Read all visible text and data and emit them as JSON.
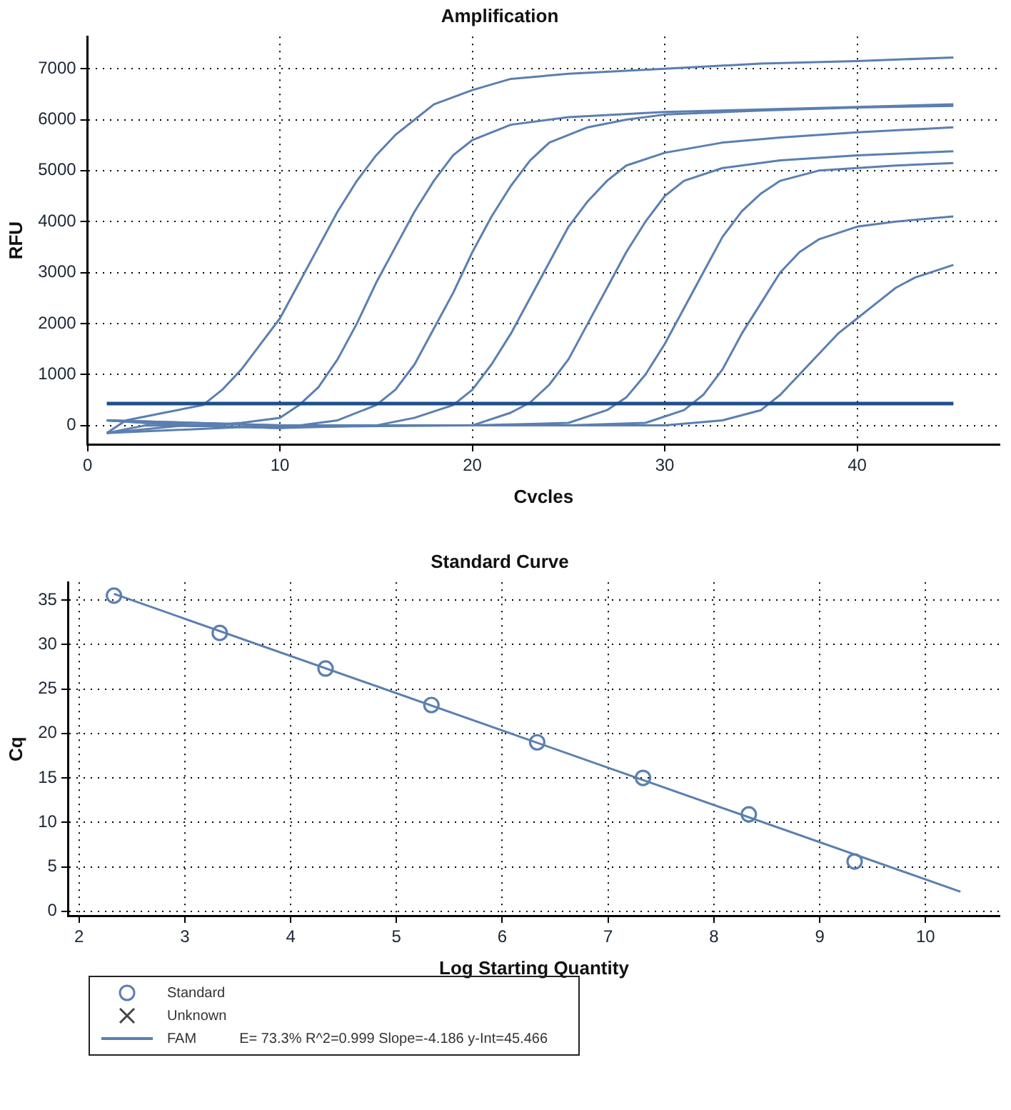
{
  "chart_data": [
    {
      "type": "line",
      "title": "Amplification",
      "xlabel": "Cvcles",
      "ylabel": "RFU",
      "xlim": [
        0,
        47.4
      ],
      "ylim": [
        -370,
        7630
      ],
      "xticks": [
        0,
        10,
        20,
        30,
        40
      ],
      "yticks": [
        0,
        1000,
        2000,
        3000,
        4000,
        5000,
        6000,
        7000
      ],
      "grid": true,
      "legend": false,
      "marker": "none",
      "ref_lines": [
        {
          "axis": "y",
          "value": 430,
          "color": "#1f4e8c"
        }
      ],
      "series": [
        {
          "color": "#5b7fb0",
          "x": [
            1,
            2,
            4,
            6,
            7,
            8,
            9,
            10,
            11,
            12,
            13,
            14,
            15,
            16,
            17,
            18,
            20,
            22,
            25,
            30,
            35,
            40,
            45
          ],
          "values": [
            -150,
            100,
            250,
            400,
            700,
            1100,
            1600,
            2100,
            2800,
            3500,
            4200,
            4800,
            5300,
            5700,
            6000,
            6300,
            6580,
            6800,
            6900,
            7000,
            7100,
            7150,
            7220
          ]
        },
        {
          "color": "#5b7fb0",
          "x": [
            1,
            3,
            6,
            8,
            10,
            11,
            12,
            13,
            14,
            15,
            16,
            17,
            18,
            19,
            20,
            22,
            25,
            30,
            35,
            40,
            45
          ],
          "values": [
            100,
            50,
            0,
            50,
            150,
            400,
            750,
            1300,
            2000,
            2800,
            3500,
            4200,
            4800,
            5300,
            5600,
            5900,
            6050,
            6150,
            6200,
            6250,
            6300
          ]
        },
        {
          "color": "#5b7fb0",
          "x": [
            1,
            5,
            10,
            13,
            15,
            16,
            17,
            18,
            19,
            20,
            21,
            22,
            23,
            24,
            26,
            28,
            30,
            35,
            40,
            45
          ],
          "values": [
            -150,
            0,
            -50,
            100,
            400,
            700,
            1200,
            1900,
            2600,
            3400,
            4100,
            4700,
            5200,
            5550,
            5850,
            6000,
            6100,
            6180,
            6240,
            6270
          ]
        },
        {
          "color": "#5b7fb0",
          "x": [
            1,
            5,
            10,
            15,
            17,
            19,
            20,
            21,
            22,
            23,
            24,
            25,
            26,
            27,
            28,
            30,
            33,
            36,
            40,
            45
          ],
          "values": [
            100,
            0,
            -50,
            0,
            150,
            400,
            700,
            1200,
            1800,
            2500,
            3200,
            3900,
            4400,
            4800,
            5100,
            5350,
            5550,
            5650,
            5750,
            5850
          ]
        },
        {
          "color": "#5b7fb0",
          "x": [
            1,
            3,
            10,
            20,
            22,
            23,
            24,
            25,
            26,
            27,
            28,
            29,
            30,
            31,
            33,
            36,
            40,
            45
          ],
          "values": [
            -150,
            0,
            -30,
            0,
            250,
            450,
            800,
            1300,
            2000,
            2700,
            3400,
            4000,
            4500,
            4800,
            5050,
            5200,
            5300,
            5380
          ]
        },
        {
          "color": "#5b7fb0",
          "x": [
            1,
            10,
            20,
            25,
            27,
            28,
            29,
            30,
            31,
            32,
            33,
            34,
            35,
            36,
            38,
            40,
            42,
            45
          ],
          "values": [
            100,
            0,
            0,
            50,
            300,
            550,
            1000,
            1600,
            2300,
            3000,
            3700,
            4200,
            4550,
            4800,
            5000,
            5050,
            5100,
            5150
          ]
        },
        {
          "color": "#5b7fb0",
          "x": [
            1,
            10,
            25,
            29,
            31,
            32,
            33,
            34,
            35,
            36,
            37,
            38,
            40,
            42,
            45
          ],
          "values": [
            100,
            0,
            0,
            50,
            300,
            600,
            1100,
            1800,
            2400,
            3000,
            3400,
            3650,
            3900,
            4000,
            4100
          ]
        },
        {
          "color": "#5b7fb0",
          "x": [
            1,
            10,
            30,
            33,
            35,
            36,
            37,
            38,
            39,
            40,
            41,
            42,
            43,
            45
          ],
          "values": [
            -150,
            0,
            0,
            100,
            300,
            600,
            1000,
            1400,
            1800,
            2100,
            2400,
            2700,
            2900,
            3150
          ]
        }
      ]
    },
    {
      "type": "scatter",
      "title": "Standard Curve",
      "xlabel": "Log Starting Quantity",
      "ylabel": "Cq",
      "xlim": [
        1.9,
        10.7
      ],
      "ylim": [
        -0.5,
        37
      ],
      "xticks": [
        2,
        3,
        4,
        5,
        6,
        7,
        8,
        9,
        10
      ],
      "yticks": [
        0,
        5,
        10,
        15,
        20,
        25,
        30,
        35
      ],
      "grid": true,
      "legend": "bottom left",
      "annotations": [
        "E= 73.3% R^2=0.999 Slope=-4.186 y-Int=45.466"
      ],
      "series": [
        {
          "name": "Standard",
          "type": "scatter",
          "marker": "circle",
          "color": "#5b7fb0",
          "x": [
            2.33,
            3.33,
            4.33,
            5.33,
            6.33,
            7.33,
            8.33,
            9.33
          ],
          "values": [
            35.5,
            31.3,
            27.3,
            23.2,
            19.0,
            15.0,
            10.9,
            5.6
          ]
        },
        {
          "name": "Unknown",
          "type": "scatter",
          "marker": "cross",
          "color": "#444444"
        },
        {
          "name": "FAM",
          "type": "line",
          "marker": "none",
          "color": "#5b7fb0",
          "x": [
            2.33,
            10.33
          ],
          "values": [
            35.7,
            2.2
          ]
        }
      ]
    }
  ]
}
